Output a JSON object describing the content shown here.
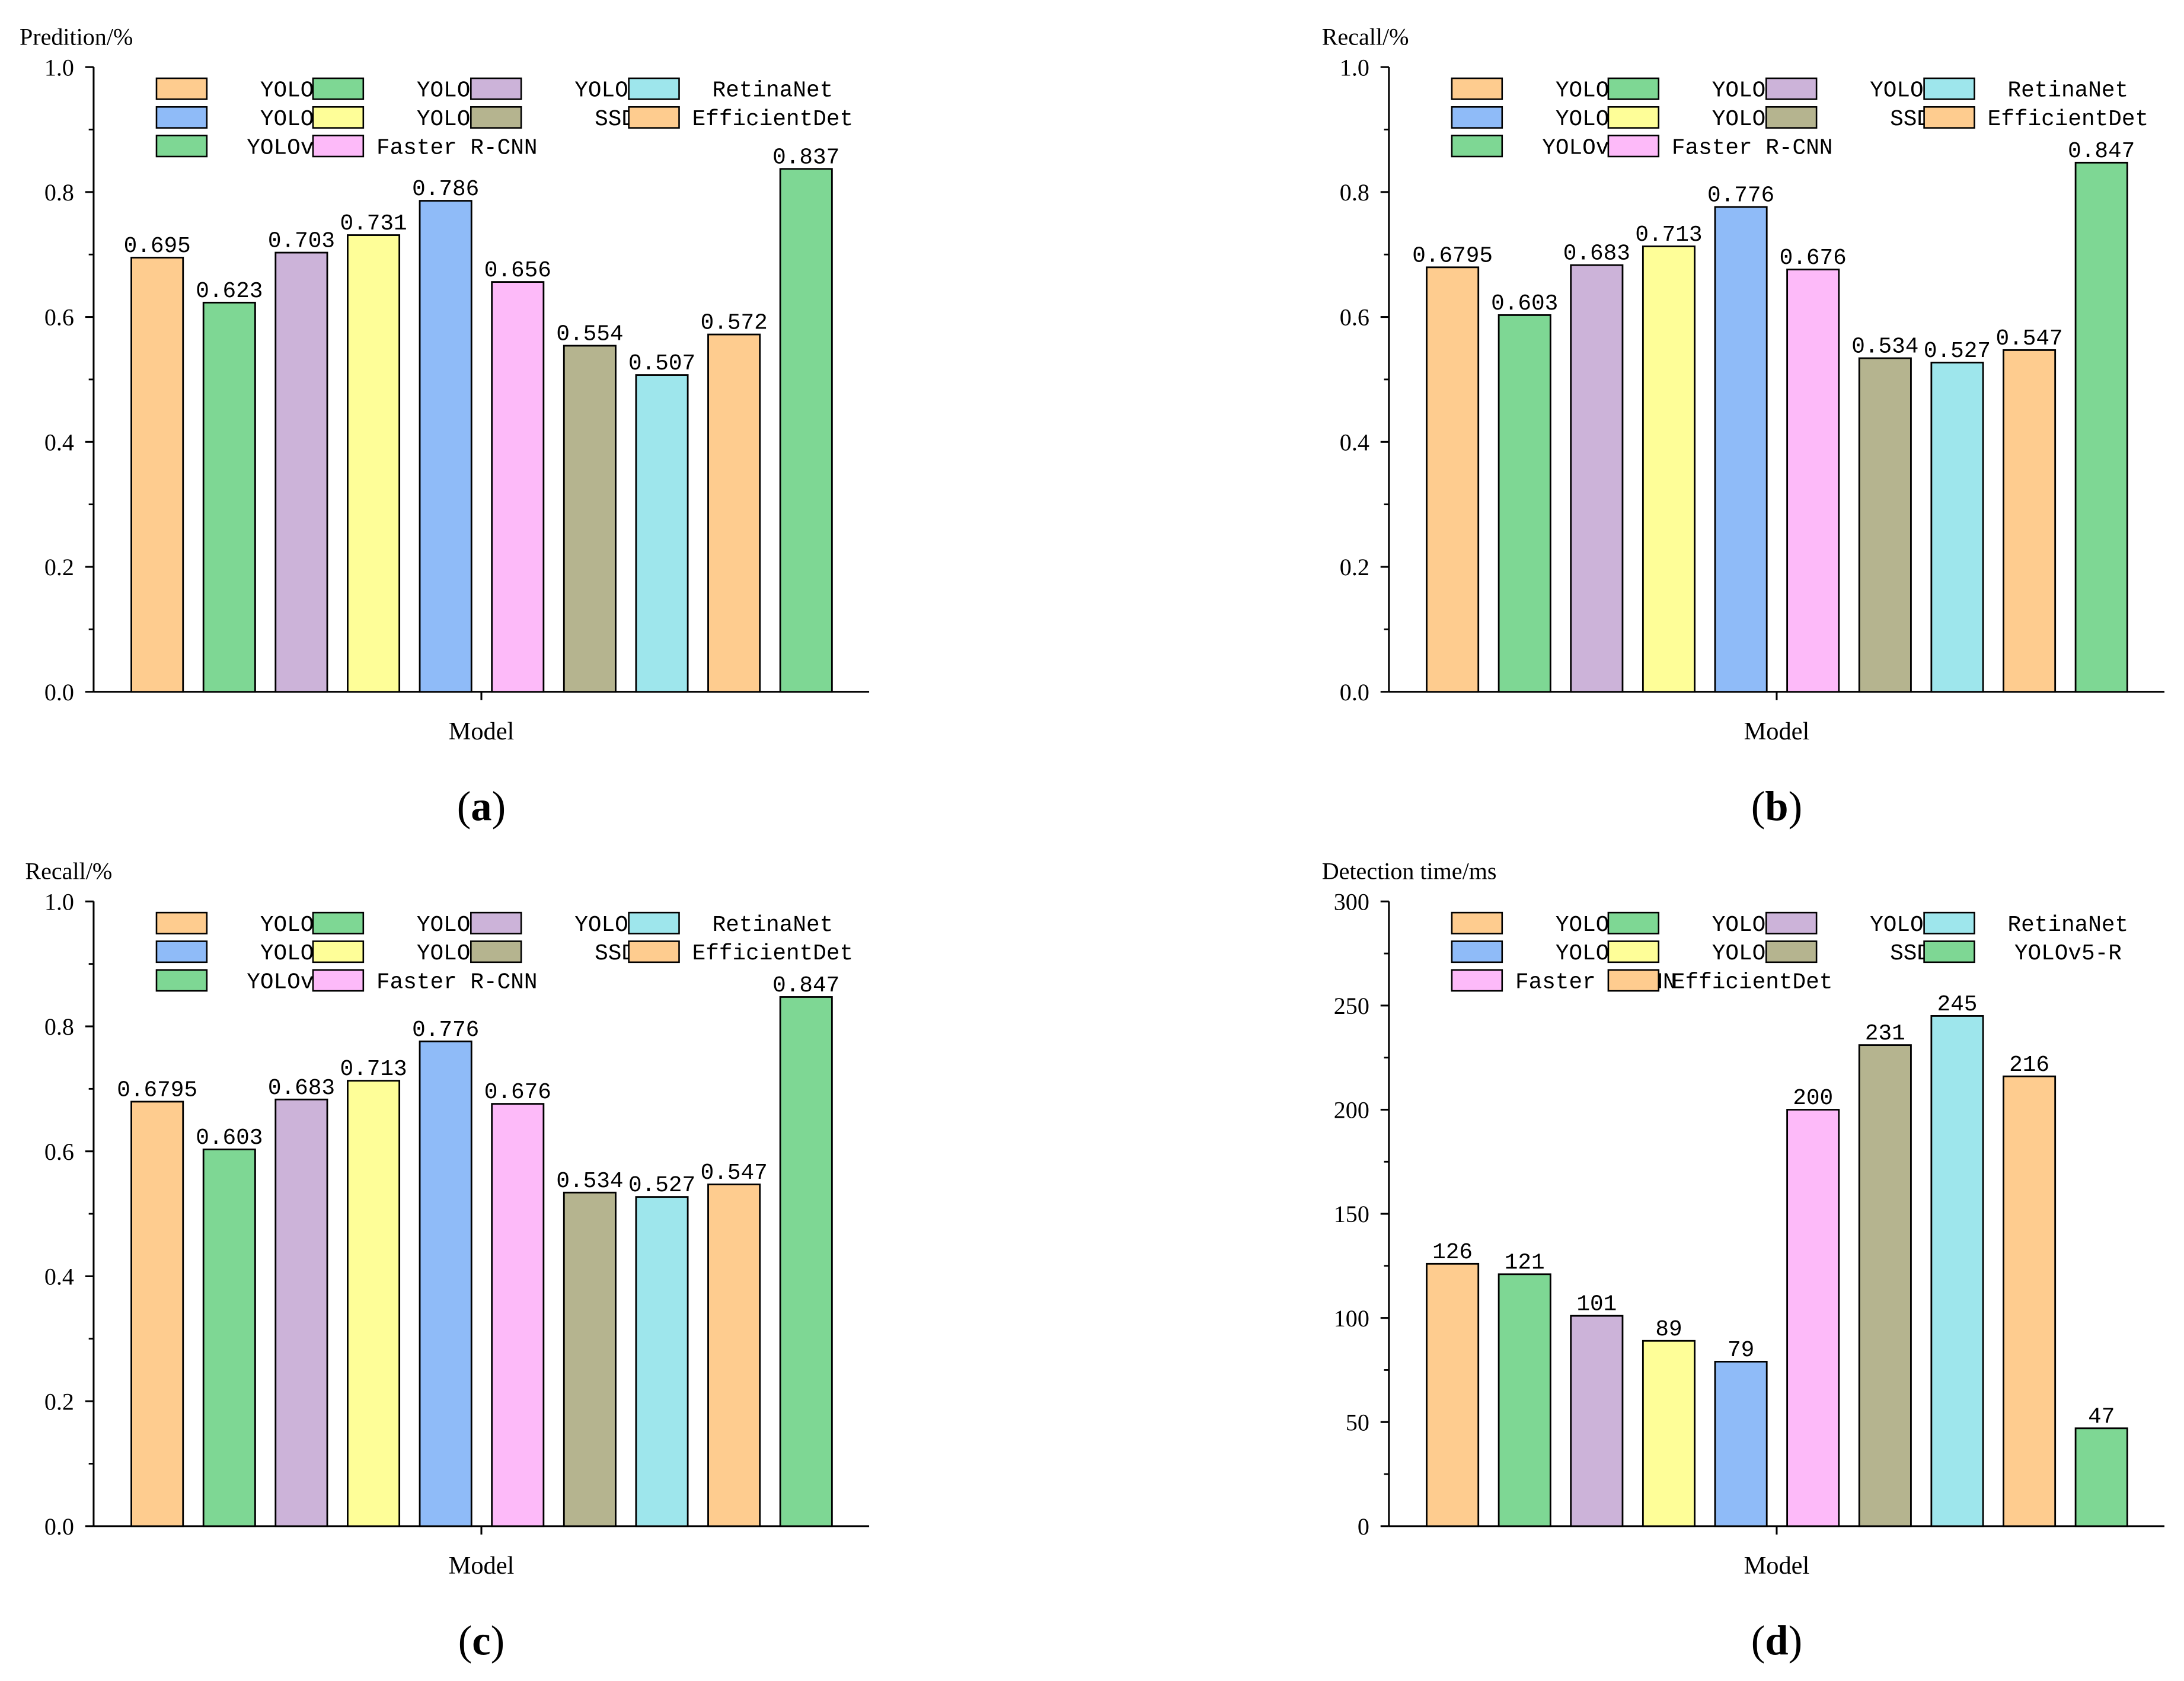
{
  "colors": {
    "YOLOv3": "#FECC8F",
    "YOLOv4": "#7ED794",
    "YOLOv5": "#CCB3D9",
    "YOLOv8": "#8FBBF8",
    "YOLOv7": "#FEFE98",
    "Faster R-CNN": "#FDBAF9",
    "SSD": "#B5B48F",
    "RetinaNet": "#9EE6EC",
    "EfficientDet": "#FECC8F",
    "YOLOv5-R": "#7ED794"
  },
  "chart_data": [
    {
      "type": "bar",
      "panel_label": "(a)",
      "ylabel": "Predition/%",
      "xlabel": "Model",
      "ylim": [
        0,
        1.0
      ],
      "yticks": [
        0.0,
        0.2,
        0.4,
        0.6,
        0.8,
        1.0
      ],
      "ytick_labels": [
        "0.0",
        "0.2",
        "0.4",
        "0.6",
        "0.8",
        "1.0"
      ],
      "grid": false,
      "legend_placement": "top",
      "legend_rows": [
        [
          "YOLOv3",
          "YOLOv4",
          "YOLOv5",
          "RetinaNet"
        ],
        [
          "YOLOv8",
          "YOLOv7",
          "SSD",
          "EfficientDet"
        ],
        [
          "YOLOv5-R",
          "Faster R-CNN"
        ]
      ],
      "categories": [
        "YOLOv3",
        "YOLOv4",
        "YOLOv5",
        "YOLOv7",
        "YOLOv8",
        "Faster R-CNN",
        "SSD",
        "RetinaNet",
        "EfficientDet",
        "YOLOv5-R"
      ],
      "values": [
        0.695,
        0.623,
        0.703,
        0.731,
        0.786,
        0.656,
        0.554,
        0.507,
        0.572,
        0.837
      ],
      "value_labels": [
        "0.695",
        "0.623",
        "0.703",
        "0.731",
        "0.786",
        "0.656",
        "0.554",
        "0.507",
        "0.572",
        "0.837"
      ]
    },
    {
      "type": "bar",
      "panel_label": "(b)",
      "ylabel": "Recall/%",
      "xlabel": "Model",
      "ylim": [
        0,
        1.0
      ],
      "yticks": [
        0.0,
        0.2,
        0.4,
        0.6,
        0.8,
        1.0
      ],
      "ytick_labels": [
        "0.0",
        "0.2",
        "0.4",
        "0.6",
        "0.8",
        "1.0"
      ],
      "grid": false,
      "legend_placement": "top",
      "legend_rows": [
        [
          "YOLOv3",
          "YOLOv4",
          "YOLOv5",
          "RetinaNet"
        ],
        [
          "YOLOv8",
          "YOLOv7",
          "SSD",
          "EfficientDet"
        ],
        [
          "YOLOv5-R",
          "Faster R-CNN"
        ]
      ],
      "categories": [
        "YOLOv3",
        "YOLOv4",
        "YOLOv5",
        "YOLOv7",
        "YOLOv8",
        "Faster R-CNN",
        "SSD",
        "RetinaNet",
        "EfficientDet",
        "YOLOv5-R"
      ],
      "values": [
        0.6795,
        0.603,
        0.683,
        0.713,
        0.776,
        0.676,
        0.534,
        0.527,
        0.547,
        0.847
      ],
      "value_labels": [
        "0.6795",
        "0.603",
        "0.683",
        "0.713",
        "0.776",
        "0.676",
        "0.534",
        "0.527",
        "0.547",
        "0.847"
      ]
    },
    {
      "type": "bar",
      "panel_label": "(c)",
      "ylabel": "Recall/%",
      "xlabel": "Model",
      "ylim": [
        0,
        1.0
      ],
      "yticks": [
        0.0,
        0.2,
        0.4,
        0.6,
        0.8,
        1.0
      ],
      "ytick_labels": [
        "0.0",
        "0.2",
        "0.4",
        "0.6",
        "0.8",
        "1.0"
      ],
      "grid": false,
      "legend_placement": "top",
      "legend_rows": [
        [
          "YOLOv3",
          "YOLOv4",
          "YOLOv5",
          "RetinaNet"
        ],
        [
          "YOLOv8",
          "YOLOv7",
          "SSD",
          "EfficientDet"
        ],
        [
          "YOLOv5-R",
          "Faster R-CNN"
        ]
      ],
      "categories": [
        "YOLOv3",
        "YOLOv4",
        "YOLOv5",
        "YOLOv7",
        "YOLOv8",
        "Faster R-CNN",
        "SSD",
        "RetinaNet",
        "EfficientDet",
        "YOLOv5-R"
      ],
      "values": [
        0.6795,
        0.603,
        0.683,
        0.713,
        0.776,
        0.676,
        0.534,
        0.527,
        0.547,
        0.847
      ],
      "value_labels": [
        "0.6795",
        "0.603",
        "0.683",
        "0.713",
        "0.776",
        "0.676",
        "0.534",
        "0.527",
        "0.547",
        "0.847"
      ]
    },
    {
      "type": "bar",
      "panel_label": "(d)",
      "ylabel": "Detection time/ms",
      "xlabel": "Model",
      "ylim": [
        0,
        300
      ],
      "yticks": [
        0,
        50,
        100,
        150,
        200,
        250,
        300
      ],
      "ytick_labels": [
        "0",
        "50",
        "100",
        "150",
        "200",
        "250",
        "300"
      ],
      "grid": false,
      "legend_placement": "top",
      "legend_rows": [
        [
          "YOLOv3",
          "YOLOv4",
          "YOLOv5",
          "RetinaNet"
        ],
        [
          "YOLOv8",
          "YOLOv7",
          "SSD",
          "YOLOv5-R"
        ],
        [
          "Faster R-CNN",
          "EfficientDet"
        ]
      ],
      "categories": [
        "YOLOv3",
        "YOLOv4",
        "YOLOv5",
        "YOLOv7",
        "YOLOv8",
        "Faster R-CNN",
        "SSD",
        "RetinaNet",
        "EfficientDet",
        "YOLOv5-R"
      ],
      "values": [
        126,
        121,
        101,
        89,
        79,
        200,
        231,
        245,
        216,
        47
      ],
      "value_labels": [
        "126",
        "121",
        "101",
        "89",
        "79",
        "200",
        "231",
        "245",
        "216",
        "47"
      ]
    }
  ]
}
